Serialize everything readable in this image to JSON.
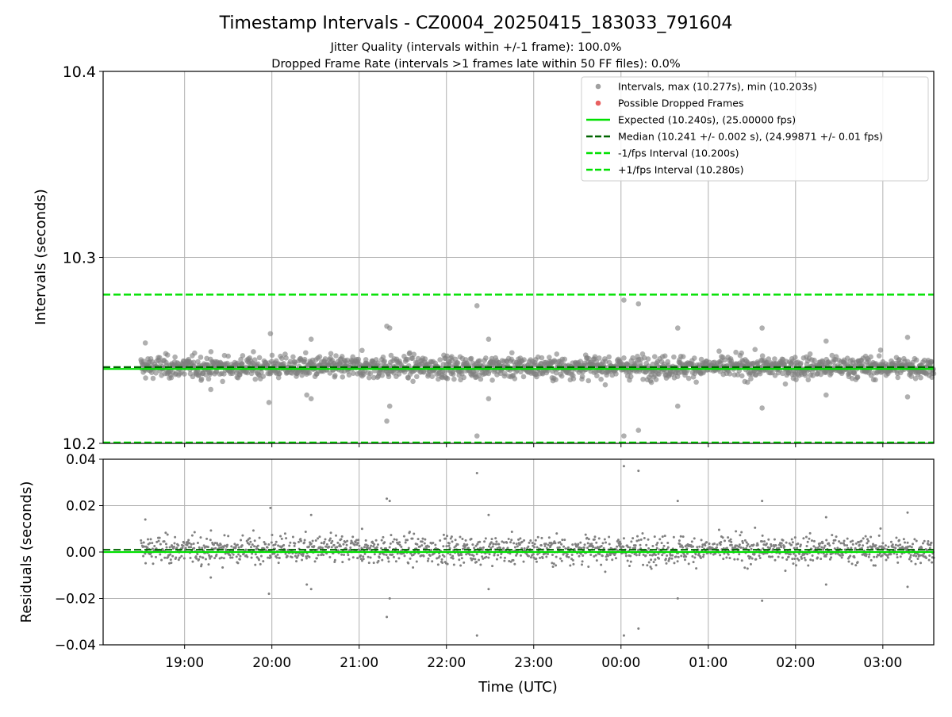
{
  "chart_data": [
    {
      "type": "scatter",
      "title": "Timestamp Intervals - CZ0004_20250415_183033_791604",
      "subtitle_lines": [
        "Jitter Quality (intervals within +/-1 frame): 100.0%",
        "Dropped Frame Rate (intervals >1 frames late within 50 FF files): 0.0%"
      ],
      "ylabel": "Intervals (seconds)",
      "ylim": [
        10.2,
        10.4
      ],
      "yticks": [
        "10.2",
        "10.3",
        "10.4"
      ],
      "xlim": [
        "2025-04-15 18:04",
        "2025-04-16 03:35"
      ],
      "data_start": "2025-04-15 18:30",
      "data_end": "2025-04-16 03:35",
      "grid": true,
      "legend_position": "top-right",
      "colors": {
        "intervals": "#808080",
        "dropped": "#e83030",
        "expected": "#00e000",
        "median": "#006400",
        "bounds": "#00e000"
      },
      "legend": [
        {
          "label": "Intervals, max (10.277s), min (10.203s)",
          "kind": "marker",
          "color": "#a0a0a0"
        },
        {
          "label": "Possible Dropped Frames",
          "kind": "marker",
          "color": "#e86060"
        },
        {
          "label": "Expected (10.240s), (25.00000 fps)",
          "kind": "solid",
          "color": "#00e000"
        },
        {
          "label": "Median (10.241 +/- 0.002 s), (24.99871 +/- 0.01 fps)",
          "kind": "dashed",
          "color": "#006400"
        },
        {
          "label": "-1/fps Interval (10.200s)",
          "kind": "dashed",
          "color": "#00e000"
        },
        {
          "label": "+1/fps Interval (10.280s)",
          "kind": "dashed",
          "color": "#00e000"
        }
      ],
      "lines": {
        "expected": 10.24,
        "median": 10.241,
        "lower": 10.2,
        "upper": 10.28
      },
      "series_stats": {
        "max": 10.277,
        "min": 10.203,
        "median": 10.241,
        "typical_spread": 0.003
      },
      "outliers": [
        [
          "2025-04-15 18:33",
          10.254
        ],
        [
          "2025-04-15 19:59",
          10.259
        ],
        [
          "2025-04-15 19:58",
          10.222
        ],
        [
          "2025-04-15 20:24",
          10.226
        ],
        [
          "2025-04-15 20:27",
          10.256
        ],
        [
          "2025-04-15 20:27",
          10.224
        ],
        [
          "2025-04-15 21:19",
          10.263
        ],
        [
          "2025-04-15 21:21",
          10.262
        ],
        [
          "2025-04-15 21:21",
          10.22
        ],
        [
          "2025-04-15 21:19",
          10.212
        ],
        [
          "2025-04-15 22:21",
          10.274
        ],
        [
          "2025-04-15 22:21",
          10.204
        ],
        [
          "2025-04-15 22:29",
          10.256
        ],
        [
          "2025-04-15 22:29",
          10.224
        ],
        [
          "2025-04-16 00:02",
          10.277
        ],
        [
          "2025-04-16 00:02",
          10.204
        ],
        [
          "2025-04-16 00:12",
          10.275
        ],
        [
          "2025-04-16 00:12",
          10.207
        ],
        [
          "2025-04-16 00:39",
          10.262
        ],
        [
          "2025-04-16 00:39",
          10.22
        ],
        [
          "2025-04-16 01:37",
          10.262
        ],
        [
          "2025-04-16 01:37",
          10.219
        ],
        [
          "2025-04-16 02:21",
          10.255
        ],
        [
          "2025-04-16 02:21",
          10.226
        ],
        [
          "2025-04-16 03:17",
          10.257
        ],
        [
          "2025-04-16 03:17",
          10.225
        ],
        [
          "2025-04-15 21:02",
          10.25
        ],
        [
          "2025-04-15 19:18",
          10.229
        ]
      ]
    },
    {
      "type": "scatter",
      "ylabel": "Residuals (seconds)",
      "xlabel": "Time (UTC)",
      "ylim": [
        -0.04,
        0.04
      ],
      "yticks": [
        "−0.04",
        "−0.02",
        "0.00",
        "0.02",
        "0.04"
      ],
      "xticks": [
        "19:00",
        "20:00",
        "21:00",
        "22:00",
        "23:00",
        "00:00",
        "01:00",
        "02:00",
        "03:00"
      ],
      "grid": true,
      "lines": {
        "zero": 0.0,
        "median_offset": 0.001
      },
      "colors": {
        "points": "#808080",
        "zero": "#00e000",
        "median": "#006400"
      }
    }
  ]
}
